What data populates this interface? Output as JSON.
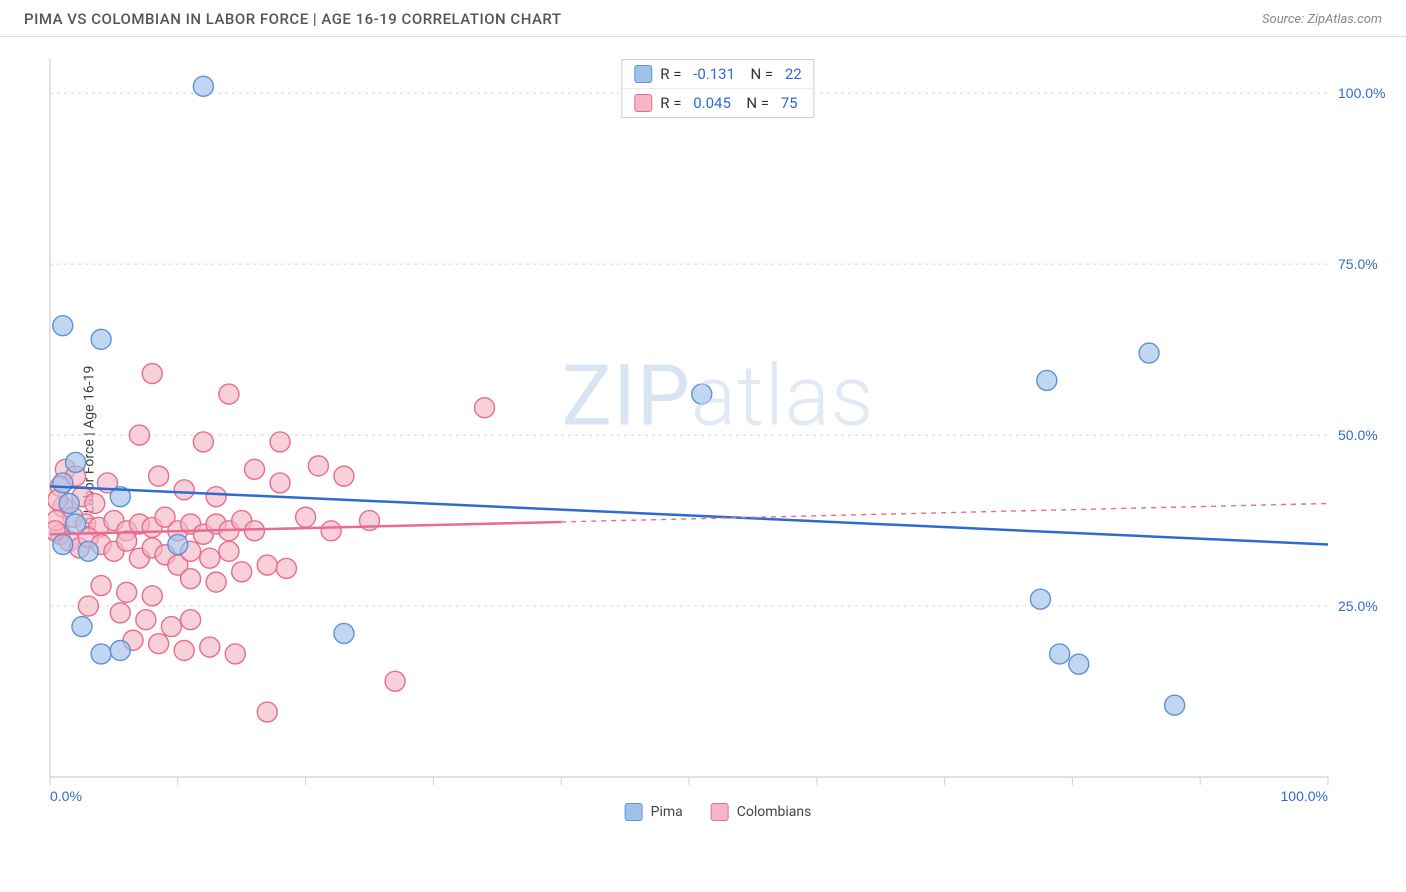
{
  "header": {
    "title": "PIMA VS COLOMBIAN IN LABOR FORCE | AGE 16-19 CORRELATION CHART",
    "source": "Source: ZipAtlas.com"
  },
  "chart": {
    "type": "scatter",
    "y_label": "In Labor Force | Age 16-19",
    "xlim": [
      0,
      100
    ],
    "ylim": [
      0,
      105
    ],
    "x_ticks": [
      0,
      10,
      20,
      30,
      40,
      50,
      60,
      70,
      80,
      90,
      100
    ],
    "x_tick_labels": {
      "0": "0.0%",
      "100": "100.0%"
    },
    "y_gridlines": [
      25,
      50,
      75,
      100
    ],
    "y_tick_labels": {
      "25": "25.0%",
      "50": "50.0%",
      "75": "75.0%",
      "100": "100.0%"
    },
    "background_color": "#ffffff",
    "grid_color": "#d8d8d8",
    "axis_color": "#cfcfcf",
    "tick_label_color": "#2d6bd3",
    "watermark": "ZIPatlas",
    "font_family": "Arial",
    "title_fontsize": 15,
    "label_fontsize": 14,
    "series": [
      {
        "name": "Pima",
        "color_fill": "#9fc1ea",
        "color_stroke": "#5b93d6",
        "marker_radius": 10,
        "trend": {
          "y_at_x0": 42.5,
          "y_at_x100": 34.0,
          "solid_until_x": 100,
          "line_color": "#2d6bd3",
          "line_width": 2.5
        },
        "r": "-0.131",
        "n": "22",
        "points": [
          {
            "x": 12,
            "y": 101
          },
          {
            "x": 4,
            "y": 64
          },
          {
            "x": 2,
            "y": 46
          },
          {
            "x": 5.5,
            "y": 41
          },
          {
            "x": 1,
            "y": 43
          },
          {
            "x": 1.5,
            "y": 40
          },
          {
            "x": 2.5,
            "y": 22
          },
          {
            "x": 4,
            "y": 18
          },
          {
            "x": 5.5,
            "y": 18.5
          },
          {
            "x": 23,
            "y": 21
          },
          {
            "x": 51,
            "y": 56
          },
          {
            "x": 78,
            "y": 58
          },
          {
            "x": 86,
            "y": 62
          },
          {
            "x": 77.5,
            "y": 26
          },
          {
            "x": 79,
            "y": 18
          },
          {
            "x": 80.5,
            "y": 16.5
          },
          {
            "x": 88,
            "y": 10.5
          },
          {
            "x": 2,
            "y": 37
          },
          {
            "x": 1,
            "y": 34
          },
          {
            "x": 3,
            "y": 33
          },
          {
            "x": 10,
            "y": 34
          },
          {
            "x": 1,
            "y": 66
          }
        ]
      },
      {
        "name": "Colombians",
        "color_fill": "#f3b7c6",
        "color_stroke": "#e86c8e",
        "marker_radius": 10,
        "trend": {
          "y_at_x0": 35.5,
          "y_at_x100": 40.0,
          "solid_until_x": 40,
          "line_color": "#e86c8e",
          "line_width": 2.5
        },
        "r": "0.045",
        "n": "75",
        "points": [
          {
            "x": 8,
            "y": 59
          },
          {
            "x": 14,
            "y": 56
          },
          {
            "x": 34,
            "y": 54
          },
          {
            "x": 7,
            "y": 50
          },
          {
            "x": 12,
            "y": 49
          },
          {
            "x": 18,
            "y": 49
          },
          {
            "x": 1.2,
            "y": 45
          },
          {
            "x": 0.8,
            "y": 42.5
          },
          {
            "x": 2,
            "y": 44
          },
          {
            "x": 2.5,
            "y": 41
          },
          {
            "x": 3.5,
            "y": 40
          },
          {
            "x": 4.5,
            "y": 43
          },
          {
            "x": 1,
            "y": 39.5
          },
          {
            "x": 1.8,
            "y": 38
          },
          {
            "x": 2.8,
            "y": 37
          },
          {
            "x": 3.8,
            "y": 36.5
          },
          {
            "x": 5,
            "y": 37.5
          },
          {
            "x": 6,
            "y": 36
          },
          {
            "x": 7,
            "y": 37
          },
          {
            "x": 8,
            "y": 36.5
          },
          {
            "x": 9,
            "y": 38
          },
          {
            "x": 10,
            "y": 36
          },
          {
            "x": 11,
            "y": 37
          },
          {
            "x": 12,
            "y": 35.5
          },
          {
            "x": 13,
            "y": 37
          },
          {
            "x": 14,
            "y": 36
          },
          {
            "x": 15,
            "y": 37.5
          },
          {
            "x": 16,
            "y": 36
          },
          {
            "x": 8.5,
            "y": 44
          },
          {
            "x": 10.5,
            "y": 42
          },
          {
            "x": 13,
            "y": 41
          },
          {
            "x": 16,
            "y": 45
          },
          {
            "x": 18,
            "y": 43
          },
          {
            "x": 21,
            "y": 45.5
          },
          {
            "x": 23,
            "y": 44
          },
          {
            "x": 20,
            "y": 38
          },
          {
            "x": 22,
            "y": 36
          },
          {
            "x": 25,
            "y": 37.5
          },
          {
            "x": 0.8,
            "y": 35.5
          },
          {
            "x": 1.5,
            "y": 34.5
          },
          {
            "x": 2.3,
            "y": 33.5
          },
          {
            "x": 3,
            "y": 35
          },
          {
            "x": 4,
            "y": 34
          },
          {
            "x": 5,
            "y": 33
          },
          {
            "x": 6,
            "y": 34.5
          },
          {
            "x": 7,
            "y": 32
          },
          {
            "x": 8,
            "y": 33.5
          },
          {
            "x": 9,
            "y": 32.5
          },
          {
            "x": 10,
            "y": 31
          },
          {
            "x": 11,
            "y": 33
          },
          {
            "x": 12.5,
            "y": 32
          },
          {
            "x": 14,
            "y": 33
          },
          {
            "x": 11,
            "y": 29
          },
          {
            "x": 13,
            "y": 28.5
          },
          {
            "x": 15,
            "y": 30
          },
          {
            "x": 17,
            "y": 31
          },
          {
            "x": 18.5,
            "y": 30.5
          },
          {
            "x": 4,
            "y": 28
          },
          {
            "x": 6,
            "y": 27
          },
          {
            "x": 8,
            "y": 26.5
          },
          {
            "x": 3,
            "y": 25
          },
          {
            "x": 5.5,
            "y": 24
          },
          {
            "x": 7.5,
            "y": 23
          },
          {
            "x": 9.5,
            "y": 22
          },
          {
            "x": 11,
            "y": 23
          },
          {
            "x": 6.5,
            "y": 20
          },
          {
            "x": 8.5,
            "y": 19.5
          },
          {
            "x": 10.5,
            "y": 18.5
          },
          {
            "x": 12.5,
            "y": 19
          },
          {
            "x": 14.5,
            "y": 18
          },
          {
            "x": 27,
            "y": 14
          },
          {
            "x": 17,
            "y": 9.5
          },
          {
            "x": 0.6,
            "y": 40.5
          },
          {
            "x": 0.5,
            "y": 37.5
          },
          {
            "x": 0.4,
            "y": 36
          }
        ]
      }
    ],
    "legend_bottom": [
      {
        "label": "Pima",
        "fill": "#9fc1ea",
        "stroke": "#5b93d6"
      },
      {
        "label": "Colombians",
        "fill": "#f3b7c6",
        "stroke": "#e86c8e"
      }
    ]
  }
}
